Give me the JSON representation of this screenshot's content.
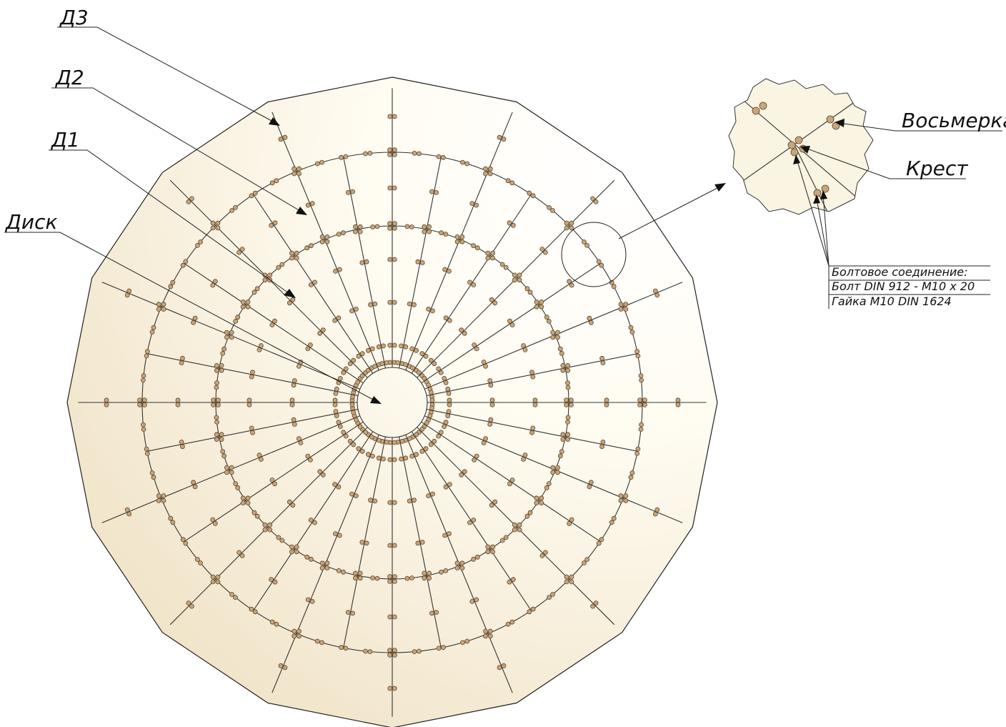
{
  "labels": {
    "d3": "Д3",
    "d2": "Д2",
    "d1": "Д1",
    "disk": "Диск",
    "figure_eight": "Восьмерка",
    "cross": "Крест"
  },
  "bolt_note": {
    "heading": "Болтовое соединение:",
    "bolt": "Болт DIN 912 - M10 x 20",
    "nut": "Гайка M10 DIN 1624"
  },
  "colors": {
    "panel_fill_light": "#fffdf6",
    "panel_fill_dark": "#efe3c8",
    "outline": "#222222",
    "bolt_fill": "#c9a57a"
  },
  "structure": {
    "radial_segments": 32,
    "outer_ribs": 16,
    "rings": [
      "Диск",
      "Д1",
      "Д2",
      "Д3"
    ]
  }
}
